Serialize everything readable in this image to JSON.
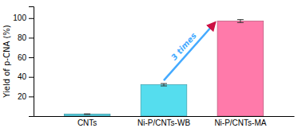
{
  "chart_data": {
    "type": "bar",
    "categories": [
      "CNTs",
      "Ni-P/CNTs-WB",
      "Ni-P/CNTs-MA"
    ],
    "values": [
      2.0,
      32.0,
      97.0
    ],
    "errors": [
      0.3,
      1.2,
      1.5
    ],
    "colors": [
      "#55ccdd",
      "#55ddee",
      "#ff7aaa"
    ],
    "ylim": [
      0,
      112
    ],
    "yticks": [
      20,
      40,
      60,
      80,
      100
    ],
    "ylabel": "Yield of p-CNA (%)",
    "annotation": "3 times"
  }
}
